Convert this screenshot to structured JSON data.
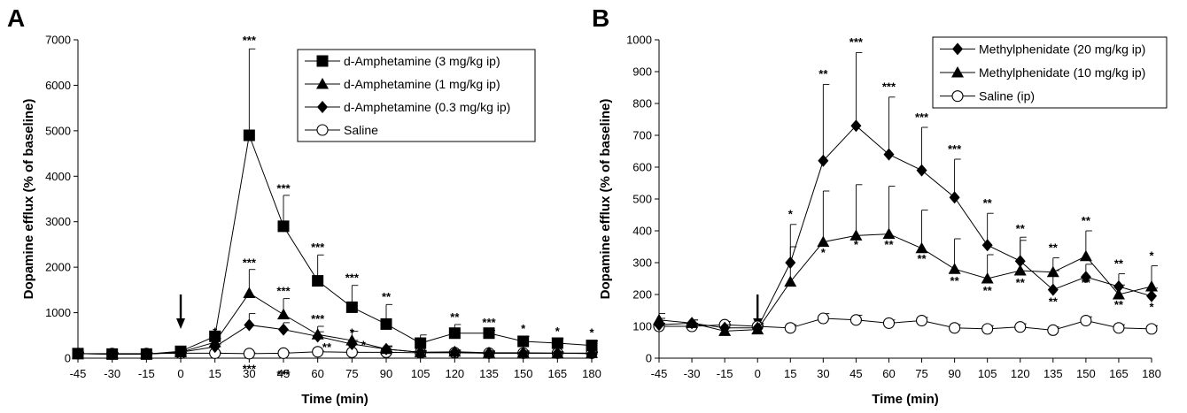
{
  "chart_data": [
    {
      "type": "line",
      "panel_label": "A",
      "xlabel": "Time (min)",
      "ylabel": "Dopamine efflux (% of baseline)",
      "x": [
        -45,
        -30,
        -15,
        0,
        15,
        30,
        45,
        60,
        75,
        90,
        105,
        120,
        135,
        150,
        165,
        180
      ],
      "x_ticks": [
        "-45",
        "-30",
        "-15",
        "0",
        "15",
        "30",
        "45",
        "60",
        "75",
        "90",
        "105",
        "120",
        "135",
        "150",
        "165",
        "180"
      ],
      "ylim": [
        0,
        7000
      ],
      "y_ticks": [
        "0",
        "1000",
        "2000",
        "3000",
        "4000",
        "5000",
        "6000",
        "7000"
      ],
      "arrow_x": 0,
      "legend_position": "top-right",
      "series": [
        {
          "name": "d-Amphetamine (3 mg/kg ip)",
          "marker": "square",
          "values": [
            100,
            90,
            90,
            150,
            480,
            4900,
            2900,
            1700,
            1120,
            750,
            330,
            550,
            550,
            370,
            330,
            280
          ],
          "errors": [
            30,
            30,
            30,
            40,
            100,
            1900,
            680,
            570,
            480,
            430,
            180,
            190,
            60,
            110,
            100,
            100
          ]
        },
        {
          "name": "d-Amphetamine (1 mg/kg ip)",
          "marker": "triangle",
          "values": [
            100,
            90,
            90,
            130,
            350,
            1430,
            960,
            520,
            390,
            200,
            130,
            140,
            120,
            120,
            110,
            110
          ],
          "errors": [
            30,
            30,
            30,
            30,
            80,
            520,
            350,
            180,
            200,
            70,
            40,
            40,
            40,
            40,
            30,
            30
          ]
        },
        {
          "name": "d-Amphetamine (0.3 mg/kg ip)",
          "marker": "diamond",
          "values": [
            100,
            90,
            90,
            130,
            250,
            730,
            630,
            480,
            310,
            200,
            130,
            130,
            110,
            110,
            110,
            100
          ],
          "errors": [
            30,
            30,
            30,
            30,
            60,
            250,
            150,
            100,
            80,
            50,
            30,
            30,
            30,
            30,
            30,
            30
          ]
        },
        {
          "name": "Saline",
          "marker": "circle",
          "values": [
            100,
            100,
            100,
            110,
            110,
            100,
            110,
            140,
            130,
            130,
            120,
            120,
            110,
            110,
            110,
            110
          ],
          "errors": [
            20,
            20,
            20,
            20,
            20,
            20,
            20,
            20,
            20,
            20,
            20,
            20,
            20,
            20,
            20,
            20
          ]
        }
      ],
      "annotations": [
        {
          "x": 15,
          "y": 500,
          "text": "*"
        },
        {
          "x": 15,
          "y": 200,
          "text": "*"
        },
        {
          "x": 30,
          "y": 6900,
          "text": "***"
        },
        {
          "x": 30,
          "y": 2010,
          "text": "***"
        },
        {
          "x": 30,
          "y": -320,
          "text": "***"
        },
        {
          "x": 45,
          "y": 3650,
          "text": "***"
        },
        {
          "x": 45,
          "y": 1390,
          "text": "***"
        },
        {
          "x": 45,
          "y": -450,
          "text": "***"
        },
        {
          "x": 60,
          "y": 2350,
          "text": "***"
        },
        {
          "x": 60,
          "y": 780,
          "text": "***"
        },
        {
          "x": 64,
          "y": 160,
          "text": "**"
        },
        {
          "x": 75,
          "y": 1680,
          "text": "***"
        },
        {
          "x": 75,
          "y": 480,
          "text": "*"
        },
        {
          "x": 80,
          "y": 200,
          "text": "*"
        },
        {
          "x": 90,
          "y": 1260,
          "text": "**"
        },
        {
          "x": 120,
          "y": 820,
          "text": "**"
        },
        {
          "x": 135,
          "y": 700,
          "text": "***"
        },
        {
          "x": 150,
          "y": 560,
          "text": "*"
        },
        {
          "x": 165,
          "y": 510,
          "text": "*"
        },
        {
          "x": 180,
          "y": 480,
          "text": "*"
        }
      ]
    },
    {
      "type": "line",
      "panel_label": "B",
      "xlabel": "Time (min)",
      "ylabel": "Dopamine efflux (% of baseline)",
      "x": [
        -45,
        -30,
        -15,
        0,
        15,
        30,
        45,
        60,
        75,
        90,
        105,
        120,
        135,
        150,
        165,
        180
      ],
      "x_ticks": [
        "-45",
        "-30",
        "-15",
        "0",
        "15",
        "30",
        "45",
        "60",
        "75",
        "90",
        "105",
        "120",
        "135",
        "150",
        "165",
        "180"
      ],
      "ylim": [
        0,
        1000
      ],
      "y_ticks": [
        "0",
        "100",
        "200",
        "300",
        "400",
        "500",
        "600",
        "700",
        "800",
        "900",
        "1000"
      ],
      "arrow_x": 0,
      "legend_position": "top-right",
      "series": [
        {
          "name": "Methylphenidate (20 mg/kg ip)",
          "marker": "diamond",
          "values": [
            105,
            110,
            95,
            95,
            300,
            620,
            730,
            640,
            590,
            505,
            355,
            305,
            215,
            255,
            225,
            195
          ],
          "errors": [
            20,
            10,
            10,
            10,
            120,
            240,
            230,
            180,
            135,
            120,
            100,
            75,
            60,
            40,
            40,
            25
          ]
        },
        {
          "name": "Methylphenidate (10 mg/kg ip)",
          "marker": "triangle",
          "values": [
            120,
            110,
            85,
            90,
            240,
            365,
            385,
            390,
            345,
            280,
            250,
            275,
            270,
            320,
            200,
            225
          ],
          "errors": [
            20,
            10,
            10,
            10,
            110,
            160,
            160,
            150,
            120,
            95,
            75,
            95,
            45,
            80,
            30,
            65
          ]
        },
        {
          "name": "Saline (ip)",
          "marker": "circle",
          "values": [
            100,
            100,
            105,
            100,
            95,
            125,
            120,
            110,
            118,
            95,
            92,
            98,
            88,
            118,
            95,
            92
          ],
          "errors": [
            10,
            10,
            10,
            10,
            10,
            15,
            15,
            10,
            10,
            10,
            10,
            10,
            10,
            12,
            10,
            10
          ]
        }
      ],
      "annotations": [
        {
          "x": 15,
          "y": 440,
          "text": "*"
        },
        {
          "x": 30,
          "y": 880,
          "text": "**"
        },
        {
          "x": 30,
          "y": 320,
          "text": "*"
        },
        {
          "x": 45,
          "y": 980,
          "text": "***"
        },
        {
          "x": 45,
          "y": 345,
          "text": "*"
        },
        {
          "x": 60,
          "y": 840,
          "text": "***"
        },
        {
          "x": 60,
          "y": 345,
          "text": "**"
        },
        {
          "x": 75,
          "y": 745,
          "text": "***"
        },
        {
          "x": 75,
          "y": 300,
          "text": "**"
        },
        {
          "x": 90,
          "y": 645,
          "text": "***"
        },
        {
          "x": 90,
          "y": 230,
          "text": "**"
        },
        {
          "x": 105,
          "y": 475,
          "text": "**"
        },
        {
          "x": 105,
          "y": 200,
          "text": "**"
        },
        {
          "x": 120,
          "y": 395,
          "text": "**"
        },
        {
          "x": 120,
          "y": 225,
          "text": "**"
        },
        {
          "x": 135,
          "y": 335,
          "text": "**"
        },
        {
          "x": 135,
          "y": 165,
          "text": "**"
        },
        {
          "x": 150,
          "y": 420,
          "text": "**"
        },
        {
          "x": 150,
          "y": 225,
          "text": "**"
        },
        {
          "x": 165,
          "y": 285,
          "text": "**"
        },
        {
          "x": 165,
          "y": 155,
          "text": "**"
        },
        {
          "x": 180,
          "y": 310,
          "text": "*"
        },
        {
          "x": 180,
          "y": 148,
          "text": "*"
        }
      ]
    }
  ]
}
